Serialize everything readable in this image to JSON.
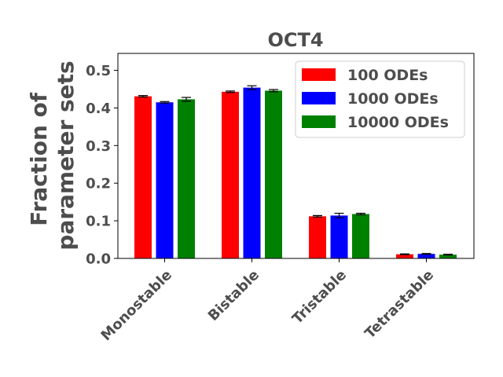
{
  "chart_data": {
    "type": "bar",
    "title": "OCT4",
    "ylabel": "Fraction of parameter sets",
    "ylabel_lines": [
      "Fraction of",
      "parameter sets"
    ],
    "xlabel": "",
    "categories": [
      "Monostable",
      "Bistable",
      "Tristable",
      "Tetrastable"
    ],
    "ylim": [
      0,
      0.545
    ],
    "yticks": [
      0.0,
      0.1,
      0.2,
      0.3,
      0.4,
      0.5
    ],
    "ytick_labels": [
      "0.0",
      "0.1",
      "0.2",
      "0.3",
      "0.4",
      "0.5"
    ],
    "legend_position": "top-right",
    "grid": false,
    "series": [
      {
        "name": "100 ODEs",
        "color": "#ff0000",
        "values": [
          0.431,
          0.443,
          0.112,
          0.011
        ],
        "errors": [
          0.002,
          0.002,
          0.002,
          0.001
        ]
      },
      {
        "name": "1000 ODEs",
        "color": "#0000ff",
        "values": [
          0.415,
          0.454,
          0.114,
          0.012
        ],
        "errors": [
          0.002,
          0.005,
          0.006,
          0.001
        ]
      },
      {
        "name": "10000 ODEs",
        "color": "#008000",
        "values": [
          0.423,
          0.446,
          0.118,
          0.01
        ],
        "errors": [
          0.005,
          0.003,
          0.002,
          0.001
        ]
      }
    ]
  }
}
